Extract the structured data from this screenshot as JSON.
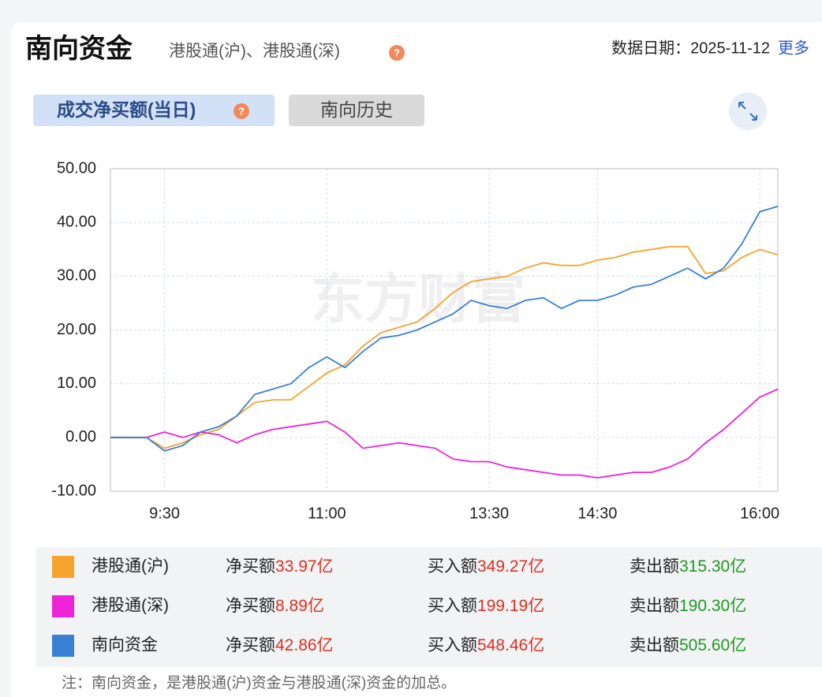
{
  "header": {
    "title": "南向资金",
    "subtitle": "港股通(沪)、港股通(深)",
    "date": "数据日期：2025-11-12",
    "more": "更多"
  },
  "tabs": [
    "成交净买额(当日)",
    "南向历史"
  ],
  "watermark": "东方财富",
  "chart_data": {
    "type": "line",
    "categories": [
      null,
      null,
      null,
      "9:30",
      null,
      null,
      null,
      null,
      null,
      null,
      null,
      null,
      "11:00",
      null,
      null,
      null,
      null,
      null,
      null,
      null,
      null,
      "13:30",
      null,
      null,
      null,
      null,
      null,
      "14:30",
      null,
      null,
      null,
      null,
      null,
      null,
      null,
      null,
      "16:00",
      null
    ],
    "series": [
      {
        "name": "港股通(沪)",
        "color": "#f5a42e",
        "values": [
          0,
          0,
          0,
          -2,
          -1,
          0.5,
          1.5,
          4,
          6.5,
          7,
          7,
          9.5,
          12,
          13.5,
          17,
          19.5,
          20.5,
          21.5,
          24,
          27,
          29,
          29.5,
          30,
          31.5,
          32.5,
          32,
          32,
          33,
          33.5,
          34.5,
          35,
          35.5,
          35.5,
          30.5,
          31,
          33.5,
          35,
          34
        ]
      },
      {
        "name": "港股通(深)",
        "color": "#ee22d6",
        "values": [
          0,
          0,
          0,
          1,
          0,
          1,
          0.5,
          -1,
          0.5,
          1.5,
          2,
          2.5,
          3,
          1,
          -2,
          -1.5,
          -1,
          -1.5,
          -2,
          -4,
          -4.5,
          -4.5,
          -5.5,
          -6,
          -6.5,
          -7,
          -7,
          -7.5,
          -7,
          -6.5,
          -6.5,
          -5.5,
          -4,
          -1,
          1.5,
          4.5,
          7.5,
          9
        ]
      },
      {
        "name": "南向资金",
        "color": "#3a7fd6",
        "values": [
          0,
          0,
          0,
          -2.5,
          -1.5,
          1,
          2,
          4,
          8,
          9,
          10,
          13,
          15,
          13,
          16,
          18.5,
          19,
          20,
          21.5,
          23,
          25.5,
          24.5,
          24,
          25.5,
          26,
          24,
          25.5,
          25.5,
          26.5,
          28,
          28.5,
          30,
          31.5,
          29.5,
          31.5,
          36,
          42,
          43
        ]
      }
    ],
    "ylim": [
      -10,
      50
    ],
    "yticks": [
      {
        "value": -10,
        "label": "-10.00"
      },
      {
        "value": 0,
        "label": "0.00"
      },
      {
        "value": 10,
        "label": "10.00"
      },
      {
        "value": 20,
        "label": "20.00"
      },
      {
        "value": 30,
        "label": "30.00"
      },
      {
        "value": 40,
        "label": "40.00"
      },
      {
        "value": 50,
        "label": "50.00"
      }
    ],
    "grid": true
  },
  "summary": {
    "labels": [
      "净买额",
      "买入额",
      "卖出额"
    ],
    "rows": [
      [
        "33.97亿",
        "349.27亿",
        "315.30亿"
      ],
      [
        "8.89亿",
        "199.19亿",
        "190.30亿"
      ],
      [
        "42.86亿",
        "548.46亿",
        "505.60亿"
      ]
    ],
    "colors": [
      "#e0301e",
      "#e0301e",
      "#1f9a1f"
    ]
  },
  "note": "注：南向资金，是港股通(沪)资金与港股通(深)资金的加总。"
}
